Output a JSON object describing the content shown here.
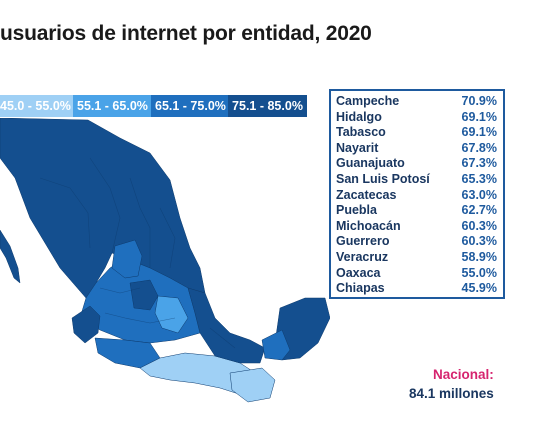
{
  "title": "usuarios de internet por entidad, 2020",
  "legend": [
    {
      "label": "45.0 - 55.0%",
      "color": "#9fd0f5"
    },
    {
      "label": "55.1 - 65.0%",
      "color": "#4aa3e8"
    },
    {
      "label": "65.1 - 75.0%",
      "color": "#1f6fbe"
    },
    {
      "label": "75.1 - 85.0%",
      "color": "#144f8f"
    }
  ],
  "states": [
    {
      "name": "Campeche",
      "value": "70.9%"
    },
    {
      "name": "Hidalgo",
      "value": "69.1%"
    },
    {
      "name": "Tabasco",
      "value": "69.1%"
    },
    {
      "name": "Nayarit",
      "value": "67.8%"
    },
    {
      "name": "Guanajuato",
      "value": "67.3%"
    },
    {
      "name": "San Luis Potosí",
      "value": "65.3%"
    },
    {
      "name": "Zacatecas",
      "value": "63.0%"
    },
    {
      "name": "Puebla",
      "value": "62.7%"
    },
    {
      "name": "Michoacán",
      "value": "60.3%"
    },
    {
      "name": "Guerrero",
      "value": "60.3%"
    },
    {
      "name": "Veracruz",
      "value": "58.9%"
    },
    {
      "name": "Oaxaca",
      "value": "55.0%"
    },
    {
      "name": "Chiapas",
      "value": "45.9%"
    }
  ],
  "nacional": {
    "label": "Nacional:",
    "value": "84.1 millones"
  }
}
